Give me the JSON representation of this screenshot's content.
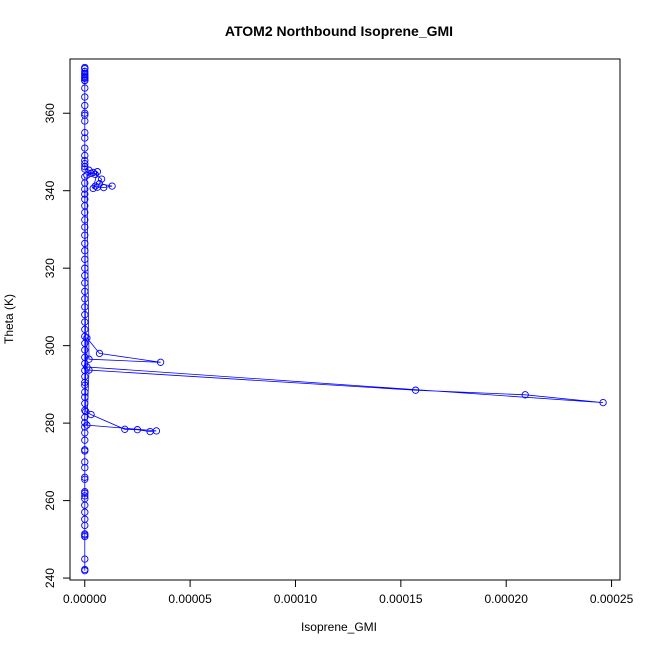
{
  "chart_data": {
    "type": "scatter",
    "title": "ATOM2 Northbound Isoprene_GMI",
    "xlabel": "Isoprene_GMI",
    "ylabel": "Theta (K)",
    "xlim": [
      -7e-06,
      0.000254
    ],
    "ylim": [
      239.5,
      374
    ],
    "xticks": [
      0,
      5e-05,
      0.0001,
      0.00015,
      0.0002,
      0.00025
    ],
    "xtick_labels": [
      "0.00000",
      "0.00005",
      "0.00010",
      "0.00015",
      "0.00020",
      "0.00025"
    ],
    "yticks": [
      240,
      260,
      280,
      300,
      320,
      340,
      360
    ],
    "ytick_labels": [
      "240",
      "260",
      "280",
      "300",
      "320",
      "340",
      "360"
    ],
    "grid": false,
    "series": [
      {
        "color": "#0000ff",
        "marker": "open-circle",
        "line": true,
        "x": [
          0,
          0,
          0,
          0,
          0,
          0,
          0,
          0,
          0,
          0,
          0,
          0,
          0,
          0,
          0,
          0,
          0,
          0,
          0,
          0,
          0,
          0,
          0,
          0,
          0,
          0,
          0,
          0,
          0,
          0,
          0,
          0,
          0,
          0,
          0,
          0,
          0,
          0,
          0,
          0,
          0,
          0,
          0,
          0,
          0,
          0,
          0,
          0,
          0,
          0,
          0,
          0,
          0,
          0,
          0,
          0,
          0,
          0,
          0,
          0,
          5e-07,
          3e-06,
          1.9e-05,
          2.5e-05,
          3.1e-05,
          3.4e-05,
          1e-06,
          2e-06,
          0.000157,
          0.000209,
          0.000246,
          1e-06,
          1e-06,
          7e-06,
          3.6e-05,
          2e-06,
          1e-06,
          4e-06,
          8e-06,
          7e-06,
          1.3e-05,
          9e-06,
          6e-06,
          5e-06,
          4e-06,
          6e-06,
          5e-06,
          3e-06,
          2e-06,
          0,
          0,
          0,
          0,
          0,
          0,
          0,
          0,
          0,
          0,
          0,
          0,
          0,
          0,
          0,
          0,
          0,
          0,
          0,
          0,
          0,
          0,
          0,
          0
        ],
        "y": [
          241.9,
          242.2,
          244.9,
          250.7,
          251.1,
          251.4,
          253.6,
          255.2,
          257.0,
          258.8,
          260.5,
          261.2,
          261.9,
          262.3,
          265.5,
          266.0,
          268.5,
          270.0,
          272.8,
          273.1,
          275.6,
          277.5,
          279.0,
          280.1,
          281.5,
          283.3,
          285.1,
          286.7,
          288.0,
          289.8,
          290.5,
          292.0,
          293.6,
          295.4,
          297.0,
          298.9,
          300.6,
          302.4,
          304.2,
          306.1,
          308.0,
          310.0,
          312.1,
          314.0,
          316.2,
          318.1,
          320.0,
          322.3,
          324.5,
          326.4,
          328.5,
          330.6,
          332.5,
          334.4,
          336.1,
          337.8,
          339.1,
          340.4,
          342.0,
          343.6,
          283.0,
          282.2,
          278.4,
          278.3,
          277.8,
          278.0,
          279.5,
          293.7,
          288.5,
          287.3,
          285.3,
          294.5,
          302.0,
          298.0,
          295.7,
          296.5,
          344.0,
          344.7,
          343.0,
          341.8,
          341.2,
          340.8,
          340.9,
          341.2,
          340.6,
          344.9,
          344.2,
          344.5,
          345.3,
          345.6,
          346.2,
          347.0,
          347.8,
          349.1,
          351.0,
          353.6,
          355.0,
          358.0,
          359.5,
          360.0,
          362.0,
          364.2,
          366.5,
          368.5,
          369.0,
          369.5,
          370.2,
          370.8,
          371.5,
          371.8,
          369.9,
          368.4,
          369.2
        ]
      }
    ]
  }
}
